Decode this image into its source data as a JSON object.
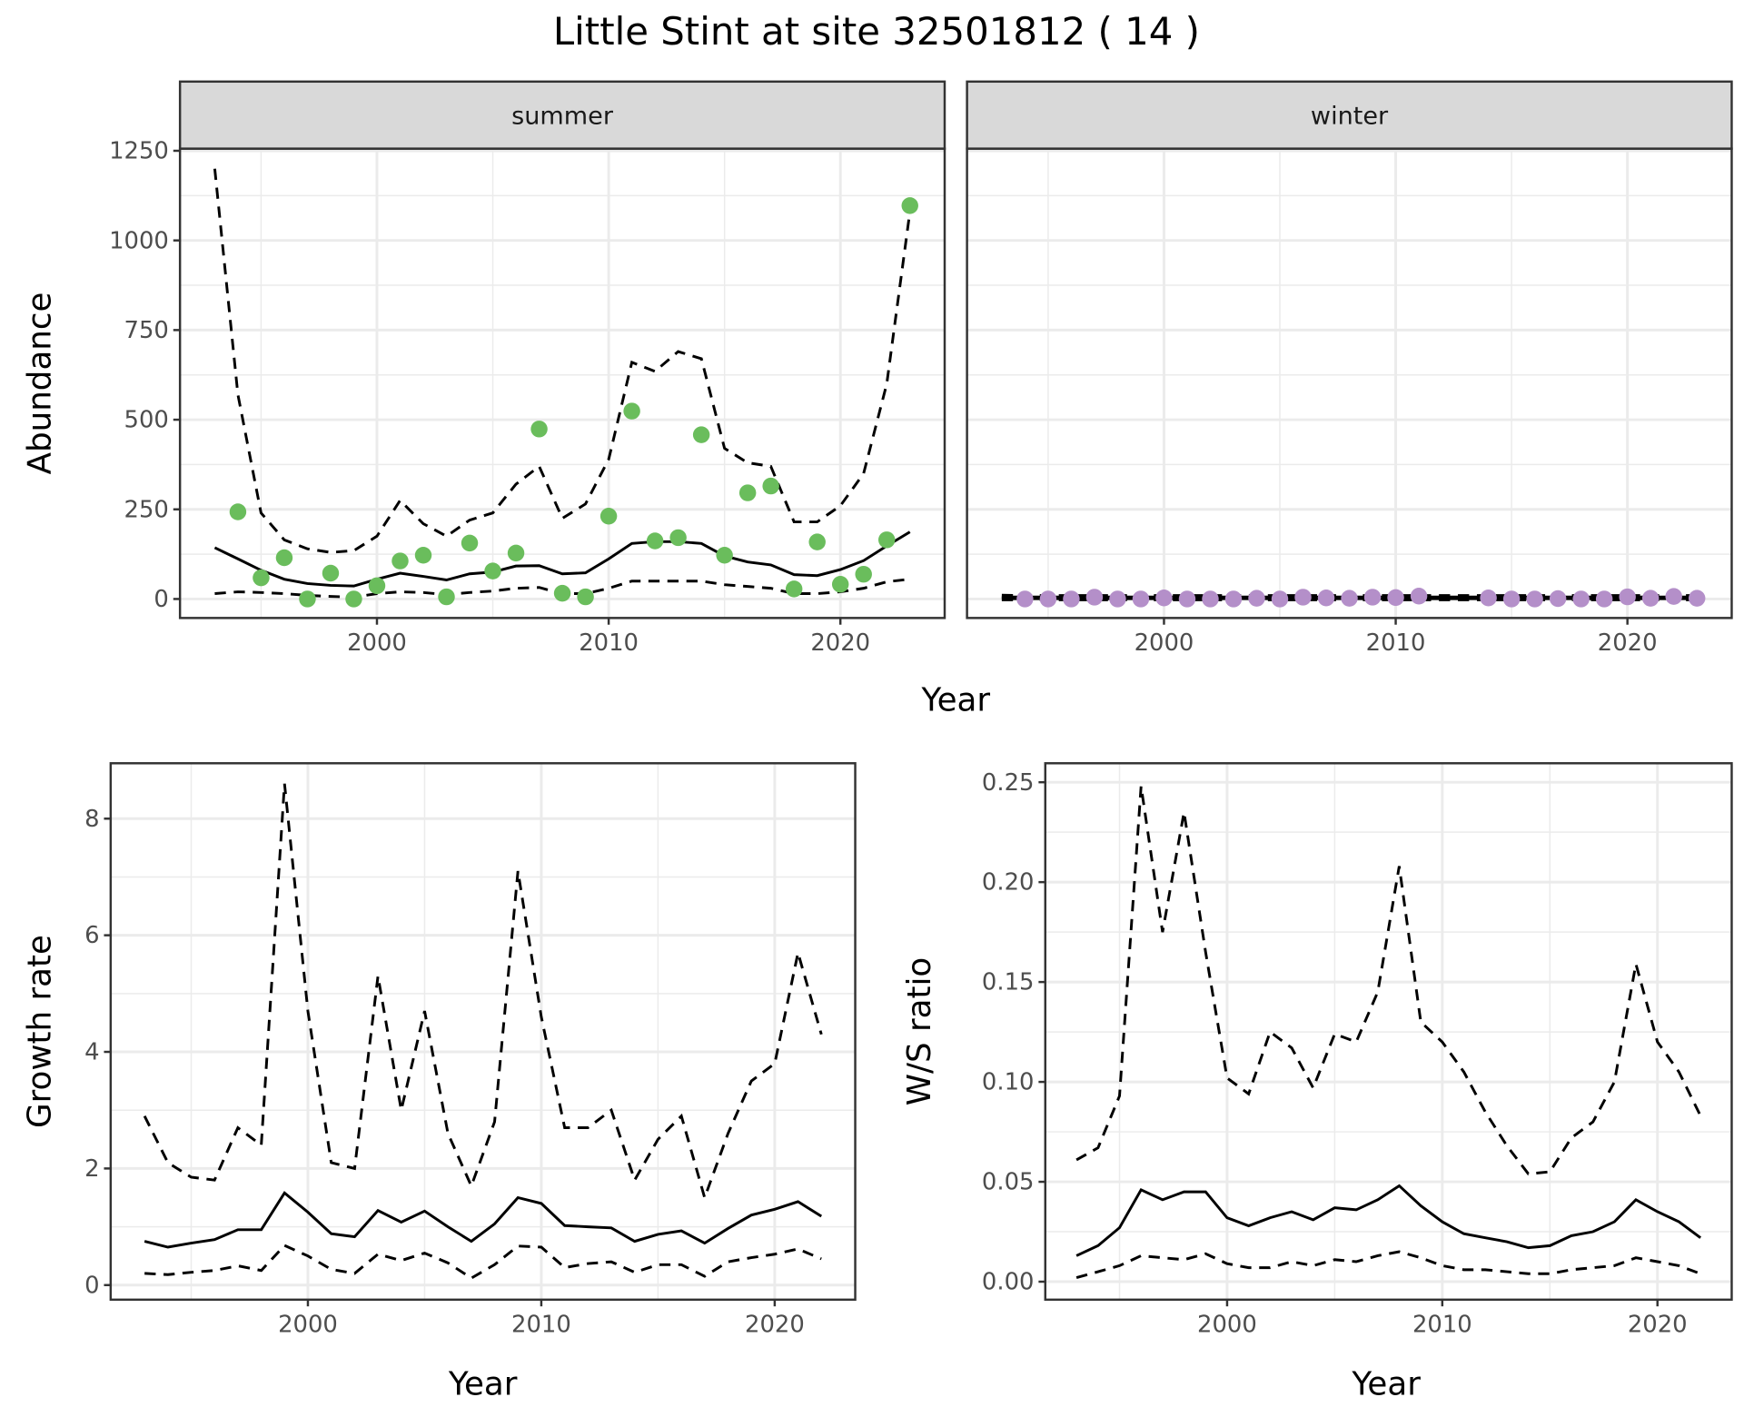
{
  "title": "Little Stint at site 32501812 ( 14 )",
  "colors": {
    "summer_points": "#6ABD5C",
    "winter_points": "#B48FC9",
    "lines": "#000000",
    "grid": "#EBEBEB",
    "strip_fill": "#D9D9D9"
  },
  "chart_data": [
    {
      "type": "scatter+line",
      "facet": "summer",
      "xlabel": "Year",
      "ylabel": "Abundance",
      "xlim": [
        1991.5,
        2024.5
      ],
      "ylim": [
        -53,
        1256
      ],
      "xticks": [
        "2000",
        "2010",
        "2020"
      ],
      "yticks": [
        "0",
        "250",
        "500",
        "750",
        "1000",
        "1250"
      ],
      "grid": true,
      "points": {
        "x": [
          1994,
          1995,
          1996,
          1997,
          1998,
          1999,
          2000,
          2001,
          2002,
          2003,
          2004,
          2005,
          2006,
          2007,
          2008,
          2009,
          2010,
          2011,
          2012,
          2013,
          2014,
          2015,
          2016,
          2017,
          2018,
          2019,
          2020,
          2021,
          2022,
          2023
        ],
        "y": [
          243,
          59,
          115,
          0,
          72,
          0,
          37,
          106,
          122,
          6,
          156,
          78,
          128,
          474,
          16,
          6,
          231,
          524,
          162,
          171,
          458,
          122,
          296,
          315,
          28,
          159,
          41,
          69,
          165,
          1097
        ]
      },
      "x": [
        1993,
        1994,
        1995,
        1996,
        1997,
        1998,
        1999,
        2000,
        2001,
        2002,
        2003,
        2004,
        2005,
        2006,
        2007,
        2008,
        2009,
        2010,
        2011,
        2012,
        2013,
        2014,
        2015,
        2016,
        2017,
        2018,
        2019,
        2020,
        2021,
        2022,
        2023
      ],
      "mean": [
        143,
        112,
        80,
        55,
        43,
        38,
        36,
        55,
        72,
        63,
        53,
        70,
        75,
        92,
        93,
        70,
        73,
        112,
        155,
        160,
        160,
        155,
        120,
        103,
        95,
        68,
        65,
        82,
        107,
        148,
        187
      ],
      "upper": [
        1200,
        570,
        240,
        165,
        140,
        130,
        135,
        175,
        275,
        210,
        175,
        220,
        240,
        320,
        370,
        225,
        265,
        390,
        660,
        635,
        690,
        670,
        420,
        380,
        370,
        215,
        215,
        260,
        350,
        600,
        1080
      ],
      "lower": [
        15,
        20,
        18,
        15,
        10,
        7,
        5,
        15,
        20,
        18,
        12,
        18,
        22,
        30,
        32,
        15,
        15,
        30,
        50,
        50,
        50,
        50,
        40,
        35,
        30,
        15,
        15,
        20,
        30,
        48,
        55
      ]
    },
    {
      "type": "scatter+line",
      "facet": "winter",
      "xlim": [
        1991.5,
        2024.5
      ],
      "ylim": [
        -53,
        1256
      ],
      "xticks": [
        "2000",
        "2010",
        "2020"
      ],
      "grid": true,
      "points": {
        "x": [
          1994,
          1995,
          1996,
          1997,
          1998,
          1999,
          2000,
          2001,
          2002,
          2003,
          2004,
          2005,
          2006,
          2007,
          2008,
          2009,
          2010,
          2011,
          2014,
          2015,
          2016,
          2017,
          2018,
          2019,
          2020,
          2021,
          2022,
          2023
        ],
        "y": [
          0,
          0,
          0,
          5,
          0,
          0,
          3,
          0,
          0,
          0,
          2,
          0,
          5,
          3,
          2,
          5,
          4,
          8,
          3,
          0,
          0,
          1,
          0,
          0,
          6,
          2,
          7,
          2
        ]
      },
      "x": [
        1993,
        1994,
        1995,
        1996,
        1997,
        1998,
        1999,
        2000,
        2001,
        2002,
        2003,
        2004,
        2005,
        2006,
        2007,
        2008,
        2009,
        2010,
        2011,
        2012,
        2013,
        2014,
        2015,
        2016,
        2017,
        2018,
        2019,
        2020,
        2021,
        2022,
        2023
      ],
      "mean": [
        3,
        3,
        3,
        3,
        3,
        3,
        3,
        3,
        3,
        3,
        3,
        3,
        3,
        3,
        3,
        3,
        3,
        3,
        3,
        3,
        3,
        3,
        3,
        3,
        3,
        3,
        3,
        3,
        3,
        3,
        3
      ],
      "upper": [
        8,
        7,
        7,
        7,
        7,
        7,
        7,
        7,
        7,
        7,
        7,
        7,
        7,
        7,
        7,
        7,
        7,
        7,
        7,
        7,
        7,
        7,
        7,
        7,
        7,
        7,
        7,
        7,
        7,
        7,
        7
      ],
      "lower": [
        0,
        0,
        0,
        0,
        0,
        0,
        0,
        0,
        0,
        0,
        0,
        0,
        0,
        0,
        0,
        0,
        0,
        0,
        0,
        0,
        0,
        0,
        0,
        0,
        0,
        0,
        0,
        0,
        0,
        0,
        0
      ]
    },
    {
      "type": "line",
      "xlabel": "Year",
      "ylabel": "Growth rate",
      "xlim": [
        1991.55,
        2023.45
      ],
      "ylim": [
        -0.25,
        8.95
      ],
      "xticks": [
        "2000",
        "2010",
        "2020"
      ],
      "yticks": [
        "0",
        "2",
        "4",
        "6",
        "8"
      ],
      "grid": true,
      "x": [
        1993,
        1994,
        1995,
        1996,
        1997,
        1998,
        1999,
        2000,
        2001,
        2002,
        2003,
        2004,
        2005,
        2006,
        2007,
        2008,
        2009,
        2010,
        2011,
        2012,
        2013,
        2014,
        2015,
        2016,
        2017,
        2018,
        2019,
        2020,
        2021,
        2022
      ],
      "mean": [
        0.75,
        0.65,
        0.72,
        0.78,
        0.95,
        0.95,
        1.58,
        1.25,
        0.88,
        0.83,
        1.28,
        1.08,
        1.27,
        1.0,
        0.75,
        1.05,
        1.5,
        1.4,
        1.02,
        1.0,
        0.98,
        0.75,
        0.87,
        0.93,
        0.72,
        0.97,
        1.2,
        1.3,
        1.43,
        1.18
      ],
      "upper": [
        2.9,
        2.1,
        1.85,
        1.8,
        2.7,
        2.4,
        8.6,
        4.7,
        2.1,
        2.0,
        5.3,
        3.0,
        4.7,
        2.6,
        1.7,
        2.8,
        7.1,
        4.6,
        2.7,
        2.7,
        3.0,
        1.8,
        2.5,
        2.9,
        1.5,
        2.6,
        3.5,
        3.8,
        5.7,
        4.3
      ],
      "lower": [
        0.2,
        0.18,
        0.22,
        0.25,
        0.33,
        0.25,
        0.68,
        0.5,
        0.27,
        0.2,
        0.53,
        0.42,
        0.55,
        0.38,
        0.12,
        0.35,
        0.67,
        0.65,
        0.3,
        0.37,
        0.4,
        0.22,
        0.35,
        0.35,
        0.15,
        0.4,
        0.47,
        0.53,
        0.62,
        0.45
      ]
    },
    {
      "type": "line",
      "xlabel": "Year",
      "ylabel": "W/S ratio",
      "xlim": [
        1991.55,
        2023.45
      ],
      "ylim": [
        -0.009,
        0.2595
      ],
      "xticks": [
        "2000",
        "2010",
        "2020"
      ],
      "yticks": [
        "0.00",
        "0.05",
        "0.10",
        "0.15",
        "0.20",
        "0.25"
      ],
      "grid": true,
      "x": [
        1993,
        1994,
        1995,
        1996,
        1997,
        1998,
        1999,
        2000,
        2001,
        2002,
        2003,
        2004,
        2005,
        2006,
        2007,
        2008,
        2009,
        2010,
        2011,
        2012,
        2013,
        2014,
        2015,
        2016,
        2017,
        2018,
        2019,
        2020,
        2021,
        2022
      ],
      "mean": [
        0.013,
        0.018,
        0.027,
        0.046,
        0.041,
        0.045,
        0.045,
        0.032,
        0.028,
        0.032,
        0.035,
        0.031,
        0.037,
        0.036,
        0.041,
        0.048,
        0.038,
        0.03,
        0.024,
        0.022,
        0.02,
        0.017,
        0.018,
        0.023,
        0.025,
        0.03,
        0.041,
        0.035,
        0.03,
        0.022
      ],
      "upper": [
        0.061,
        0.067,
        0.093,
        0.248,
        0.175,
        0.235,
        0.165,
        0.102,
        0.094,
        0.125,
        0.117,
        0.097,
        0.124,
        0.12,
        0.145,
        0.208,
        0.13,
        0.12,
        0.105,
        0.085,
        0.068,
        0.054,
        0.055,
        0.072,
        0.08,
        0.1,
        0.159,
        0.12,
        0.105,
        0.083
      ],
      "lower": [
        0.002,
        0.005,
        0.008,
        0.013,
        0.012,
        0.011,
        0.014,
        0.009,
        0.007,
        0.007,
        0.01,
        0.008,
        0.011,
        0.01,
        0.013,
        0.015,
        0.012,
        0.008,
        0.006,
        0.006,
        0.005,
        0.004,
        0.004,
        0.006,
        0.007,
        0.008,
        0.012,
        0.01,
        0.008,
        0.004
      ]
    }
  ]
}
